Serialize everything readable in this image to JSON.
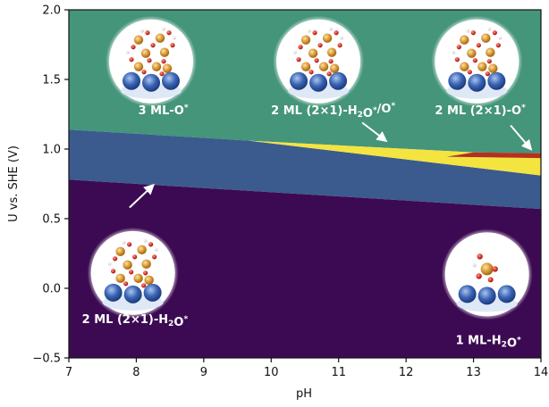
{
  "chart_data": {
    "type": "area",
    "xlabel": "pH",
    "ylabel": "U vs. SHE (V)",
    "xlim": [
      7,
      14
    ],
    "ylim": [
      -0.5,
      2.0
    ],
    "xticks": [
      "7",
      "8",
      "9",
      "10",
      "11",
      "12",
      "13",
      "14"
    ],
    "yticks": [
      "−0.5",
      "0.0",
      "0.5",
      "1.0",
      "1.5",
      "2.0"
    ],
    "grid": false,
    "legend": "none",
    "colors": {
      "1ML_H2O": "#3c0a52",
      "2ML_H2O": "#3b5b8e",
      "2ML_H2O_O": "#f4e440",
      "2ML_O": "#b5301e",
      "3ML_O": "#44957a"
    },
    "boundaries": [
      {
        "between": [
          "1 ML-H2O*",
          "2 ML (2×1)-H2O*"
        ],
        "x": [
          7,
          14
        ],
        "y": [
          0.78,
          0.57
        ]
      },
      {
        "between": [
          "2 ML (2×1)-H2O*",
          "3 ML-O*"
        ],
        "x": [
          7,
          9.67
        ],
        "y": [
          1.14,
          1.06
        ]
      },
      {
        "between": [
          "2 ML (2×1)-H2O*",
          "2 ML (2×1)-H2O*/O*"
        ],
        "x": [
          9.67,
          14
        ],
        "y": [
          1.06,
          0.81
        ]
      },
      {
        "between": [
          "2 ML (2×1)-H2O*/O*",
          "3 ML-O*"
        ],
        "x": [
          9.67,
          13.0
        ],
        "y": [
          1.06,
          0.976
        ]
      },
      {
        "between": [
          "2 ML (2×1)-H2O*/O*",
          "2 ML (2×1)-O*"
        ],
        "x": [
          12.6,
          14
        ],
        "y": [
          0.945,
          0.935
        ]
      },
      {
        "between": [
          "2 ML (2×1)-O*",
          "3 ML-O*"
        ],
        "x": [
          13.0,
          14
        ],
        "y": [
          0.976,
          0.97
        ]
      }
    ],
    "regions": [
      {
        "name": "3 ML-O*",
        "color_key": "3ML_O",
        "polygon": [
          [
            7,
            2.0
          ],
          [
            14,
            2.0
          ],
          [
            14,
            0.97
          ],
          [
            13.0,
            0.976
          ],
          [
            9.67,
            1.06
          ],
          [
            7,
            1.14
          ]
        ]
      },
      {
        "name": "2 ML (2×1)-H2O*",
        "color_key": "2ML_H2O",
        "polygon": [
          [
            7,
            1.14
          ],
          [
            9.67,
            1.06
          ],
          [
            14,
            0.81
          ],
          [
            14,
            0.57
          ],
          [
            7,
            0.78
          ]
        ]
      },
      {
        "name": "2 ML (2×1)-H2O*/O*",
        "color_key": "2ML_H2O_O",
        "polygon": [
          [
            9.67,
            1.06
          ],
          [
            13.0,
            0.976
          ],
          [
            12.6,
            0.945
          ],
          [
            14,
            0.935
          ],
          [
            14,
            0.81
          ]
        ]
      },
      {
        "name": "2 ML (2×1)-O*",
        "color_key": "2ML_O",
        "polygon": [
          [
            12.6,
            0.945
          ],
          [
            13.0,
            0.976
          ],
          [
            14,
            0.97
          ],
          [
            14,
            0.935
          ]
        ]
      },
      {
        "name": "1 ML-H2O*",
        "color_key": "1ML_H2O",
        "polygon": [
          [
            7,
            0.78
          ],
          [
            14,
            0.57
          ],
          [
            14,
            -0.5
          ],
          [
            7,
            -0.5
          ]
        ]
      }
    ],
    "labels": [
      {
        "id": "3ml_o",
        "parts": [
          [
            "3 ML-O",
            "n"
          ],
          [
            "*",
            "sup"
          ]
        ],
        "x": 8.4,
        "y": 1.25
      },
      {
        "id": "2ml_h2o_o",
        "parts": [
          [
            "2 ML (2×1)-H",
            "n"
          ],
          [
            "2",
            "sub"
          ],
          [
            "O",
            "n"
          ],
          [
            "*",
            "sup"
          ],
          [
            "/O",
            "n"
          ],
          [
            "*",
            "sup"
          ]
        ],
        "x": 10.92,
        "y": 1.25
      },
      {
        "id": "2ml_o",
        "parts": [
          [
            "2 ML (2×1)-O",
            "n"
          ],
          [
            "*",
            "sup"
          ]
        ],
        "x": 13.1,
        "y": 1.25
      },
      {
        "id": "2ml_h2o",
        "parts": [
          [
            "2 ML (2×1)-H",
            "n"
          ],
          [
            "2",
            "sub"
          ],
          [
            "O",
            "n"
          ],
          [
            "*",
            "sup"
          ]
        ],
        "x": 7.98,
        "y": -0.25
      },
      {
        "id": "1ml_h2o",
        "parts": [
          [
            "1 ML-H",
            "n"
          ],
          [
            "2",
            "sub"
          ],
          [
            "O",
            "n"
          ],
          [
            "*",
            "sup"
          ]
        ],
        "x": 13.22,
        "y": -0.4
      }
    ],
    "arrows": [
      {
        "id": "arrow-to-2ml-h2o-region",
        "from": [
          7.9,
          0.58
        ],
        "to": [
          8.25,
          0.74
        ]
      },
      {
        "id": "arrow-to-yellow-region",
        "from": [
          11.35,
          1.19
        ],
        "to": [
          11.7,
          1.06
        ]
      },
      {
        "id": "arrow-to-red-region",
        "from": [
          13.55,
          1.17
        ],
        "to": [
          13.85,
          1.0
        ]
      }
    ],
    "insets": [
      {
        "id": "inset-3ml-o",
        "x": 8.22,
        "y": 1.63,
        "kind": "o_layers"
      },
      {
        "id": "inset-2ml-h2o-o",
        "x": 10.7,
        "y": 1.63,
        "kind": "o_layers"
      },
      {
        "id": "inset-2ml-o",
        "x": 13.05,
        "y": 1.63,
        "kind": "o_layers"
      },
      {
        "id": "inset-2ml-h2o",
        "x": 7.95,
        "y": 0.11,
        "kind": "o_layers"
      },
      {
        "id": "inset-1ml-h2o",
        "x": 13.2,
        "y": 0.1,
        "kind": "single"
      }
    ]
  }
}
